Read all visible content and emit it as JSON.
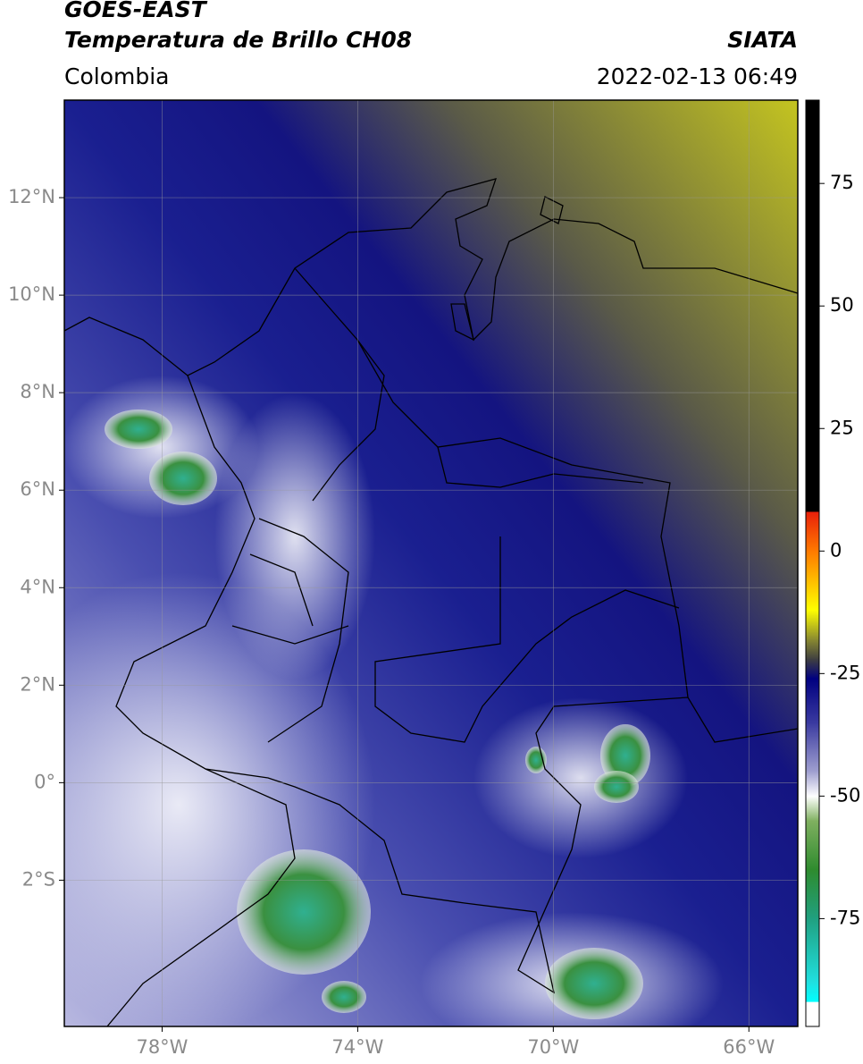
{
  "header": {
    "title": "GOES-EAST",
    "subtitle": "Temperatura de Brillo CH08",
    "source": "SIATA",
    "region": "Colombia",
    "datetime": "2022-02-13 06:49"
  },
  "map": {
    "xlim": [
      -80,
      -65
    ],
    "ylim": [
      -5,
      14
    ],
    "grid": true,
    "xticks": [
      {
        "value": -78,
        "label": "78°W"
      },
      {
        "value": -74,
        "label": "74°W"
      },
      {
        "value": -70,
        "label": "70°W"
      },
      {
        "value": -66,
        "label": "66°W"
      }
    ],
    "yticks": [
      {
        "value": 12,
        "label": "12°N"
      },
      {
        "value": 10,
        "label": "10°N"
      },
      {
        "value": 8,
        "label": "8°N"
      },
      {
        "value": 6,
        "label": "6°N"
      },
      {
        "value": 4,
        "label": "4°N"
      },
      {
        "value": 2,
        "label": "2°N"
      },
      {
        "value": 0,
        "label": "0°"
      },
      {
        "value": -2,
        "label": "2°S"
      }
    ]
  },
  "colorbar": {
    "lim": [
      -97,
      92
    ],
    "ticks": [
      75,
      50,
      25,
      0,
      -25,
      -50,
      -75
    ],
    "stops": [
      {
        "value": 92,
        "color": "#000000"
      },
      {
        "value": 8,
        "color": "#000000"
      },
      {
        "value": 8,
        "color": "#e8200a"
      },
      {
        "value": 0,
        "color": "#ff7a00"
      },
      {
        "value": -12,
        "color": "#ffff00"
      },
      {
        "value": -18,
        "color": "#8a8a30"
      },
      {
        "value": -22,
        "color": "#404040"
      },
      {
        "value": -26,
        "color": "#000080"
      },
      {
        "value": -35,
        "color": "#3a3aa0"
      },
      {
        "value": -45,
        "color": "#a0a0d0"
      },
      {
        "value": -50,
        "color": "#ffffff"
      },
      {
        "value": -55,
        "color": "#80b060"
      },
      {
        "value": -65,
        "color": "#2e8b2e"
      },
      {
        "value": -75,
        "color": "#20a080"
      },
      {
        "value": -88,
        "color": "#20e0e0"
      },
      {
        "value": -92,
        "color": "#00ffff"
      },
      {
        "value": -92,
        "color": "#ffffff"
      },
      {
        "value": -97,
        "color": "#ffffff"
      }
    ]
  }
}
